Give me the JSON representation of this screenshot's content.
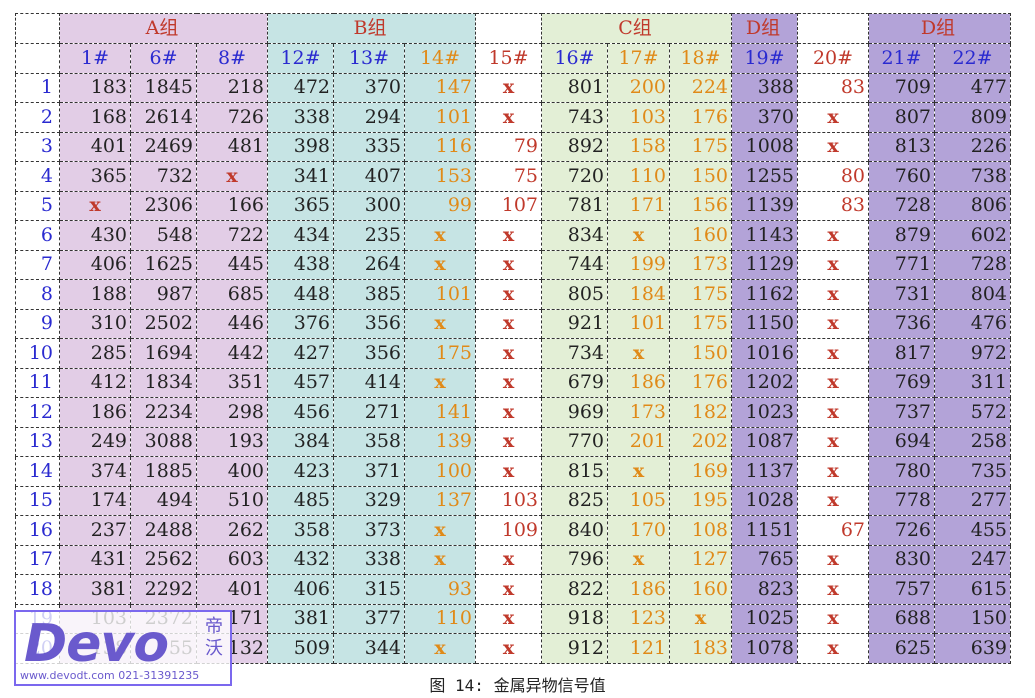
{
  "groups": [
    {
      "label": "",
      "span": 1,
      "color": "#ffffff"
    },
    {
      "label": "A组",
      "span": 3,
      "color": "#e2cde6"
    },
    {
      "label": "B组",
      "span": 3,
      "color": "#c6e4e4"
    },
    {
      "label": "",
      "span": 1,
      "color": "#ffffff"
    },
    {
      "label": "C组",
      "span": 3,
      "color": "#e3efd6"
    },
    {
      "label": "D组",
      "span": 1,
      "color": "#b3a3d8"
    },
    {
      "label": "",
      "span": 1,
      "color": "#ffffff"
    },
    {
      "label": "D组",
      "span": 2,
      "color": "#b3a3d8"
    }
  ],
  "columns": [
    {
      "label": "",
      "bg": "#ffffff",
      "color": "#2a2ad0"
    },
    {
      "label": "1#",
      "bg": "#e2cde6",
      "color": "#222222"
    },
    {
      "label": "6#",
      "bg": "#e2cde6",
      "color": "#222222"
    },
    {
      "label": "8#",
      "bg": "#e2cde6",
      "color": "#222222"
    },
    {
      "label": "12#",
      "bg": "#c6e4e4",
      "color": "#222222"
    },
    {
      "label": "13#",
      "bg": "#c6e4e4",
      "color": "#222222"
    },
    {
      "label": "14#",
      "bg": "#c6e4e4",
      "color": "#e08a18"
    },
    {
      "label": "15#",
      "bg": "#ffffff",
      "color": "#c0392b"
    },
    {
      "label": "16#",
      "bg": "#e3efd6",
      "color": "#222222"
    },
    {
      "label": "17#",
      "bg": "#e3efd6",
      "color": "#e08a18"
    },
    {
      "label": "18#",
      "bg": "#e3efd6",
      "color": "#e08a18"
    },
    {
      "label": "19#",
      "bg": "#b3a3d8",
      "color": "#222222"
    },
    {
      "label": "20#",
      "bg": "#ffffff",
      "color": "#c0392b"
    },
    {
      "label": "21#",
      "bg": "#b3a3d8",
      "color": "#222222"
    },
    {
      "label": "22#",
      "bg": "#b3a3d8",
      "color": "#222222"
    }
  ],
  "header_colors": {
    "c15": "#c0392b",
    "c14": "#e08a18",
    "c17": "#e08a18",
    "c18": "#e08a18",
    "c20": "#c0392b",
    "default": "#2a2ad0"
  },
  "x_color": "#c0392b",
  "rows": [
    [
      "1",
      "183",
      "1845",
      "218",
      "472",
      "370",
      "147",
      "x",
      "801",
      "200",
      "224",
      "388",
      "83",
      "709",
      "477"
    ],
    [
      "2",
      "168",
      "2614",
      "726",
      "338",
      "294",
      "101",
      "x",
      "743",
      "103",
      "176",
      "370",
      "x",
      "807",
      "809"
    ],
    [
      "3",
      "401",
      "2469",
      "481",
      "398",
      "335",
      "116",
      "79",
      "892",
      "158",
      "175",
      "1008",
      "x",
      "813",
      "226"
    ],
    [
      "4",
      "365",
      "732",
      "x",
      "341",
      "407",
      "153",
      "75",
      "720",
      "110",
      "150",
      "1255",
      "80",
      "760",
      "738"
    ],
    [
      "5",
      "x",
      "2306",
      "166",
      "365",
      "300",
      "99",
      "107",
      "781",
      "171",
      "156",
      "1139",
      "83",
      "728",
      "806"
    ],
    [
      "6",
      "430",
      "548",
      "722",
      "434",
      "235",
      "x",
      "x",
      "834",
      "x",
      "160",
      "1143",
      "x",
      "879",
      "602"
    ],
    [
      "7",
      "406",
      "1625",
      "445",
      "438",
      "264",
      "x",
      "x",
      "744",
      "199",
      "173",
      "1129",
      "x",
      "771",
      "728"
    ],
    [
      "8",
      "188",
      "987",
      "685",
      "448",
      "385",
      "101",
      "x",
      "805",
      "184",
      "175",
      "1162",
      "x",
      "731",
      "804"
    ],
    [
      "9",
      "310",
      "2502",
      "446",
      "376",
      "356",
      "x",
      "x",
      "921",
      "101",
      "175",
      "1150",
      "x",
      "736",
      "476"
    ],
    [
      "10",
      "285",
      "1694",
      "442",
      "427",
      "356",
      "175",
      "x",
      "734",
      "x",
      "150",
      "1016",
      "x",
      "817",
      "972"
    ],
    [
      "11",
      "412",
      "1834",
      "351",
      "457",
      "414",
      "x",
      "x",
      "679",
      "186",
      "176",
      "1202",
      "x",
      "769",
      "311"
    ],
    [
      "12",
      "186",
      "2234",
      "298",
      "456",
      "271",
      "141",
      "x",
      "969",
      "173",
      "182",
      "1023",
      "x",
      "737",
      "572"
    ],
    [
      "13",
      "249",
      "3088",
      "193",
      "384",
      "358",
      "139",
      "x",
      "770",
      "201",
      "202",
      "1087",
      "x",
      "694",
      "258"
    ],
    [
      "14",
      "374",
      "1885",
      "400",
      "423",
      "371",
      "100",
      "x",
      "815",
      "x",
      "169",
      "1137",
      "x",
      "780",
      "735"
    ],
    [
      "15",
      "174",
      "494",
      "510",
      "485",
      "329",
      "137",
      "103",
      "825",
      "105",
      "195",
      "1028",
      "x",
      "778",
      "277"
    ],
    [
      "16",
      "237",
      "2488",
      "262",
      "358",
      "373",
      "x",
      "109",
      "840",
      "170",
      "108",
      "1151",
      "67",
      "726",
      "455"
    ],
    [
      "17",
      "431",
      "2562",
      "603",
      "432",
      "338",
      "x",
      "x",
      "796",
      "x",
      "127",
      "765",
      "x",
      "830",
      "247"
    ],
    [
      "18",
      "381",
      "2292",
      "401",
      "406",
      "315",
      "93",
      "x",
      "822",
      "186",
      "160",
      "823",
      "x",
      "757",
      "615"
    ],
    [
      "19",
      "103",
      "2372",
      "171",
      "381",
      "377",
      "110",
      "x",
      "918",
      "123",
      "x",
      "1025",
      "x",
      "688",
      "150"
    ],
    [
      "20",
      "138",
      "55",
      "132",
      "509",
      "344",
      "x",
      "x",
      "912",
      "121",
      "183",
      "1078",
      "x",
      "625",
      "639"
    ]
  ],
  "caption": "图 14: 金属异物信号值",
  "logo": {
    "word": "Devo",
    "cn1": "帝",
    "cn2": "沃",
    "web": "www.devodt.com  021-31391235"
  }
}
